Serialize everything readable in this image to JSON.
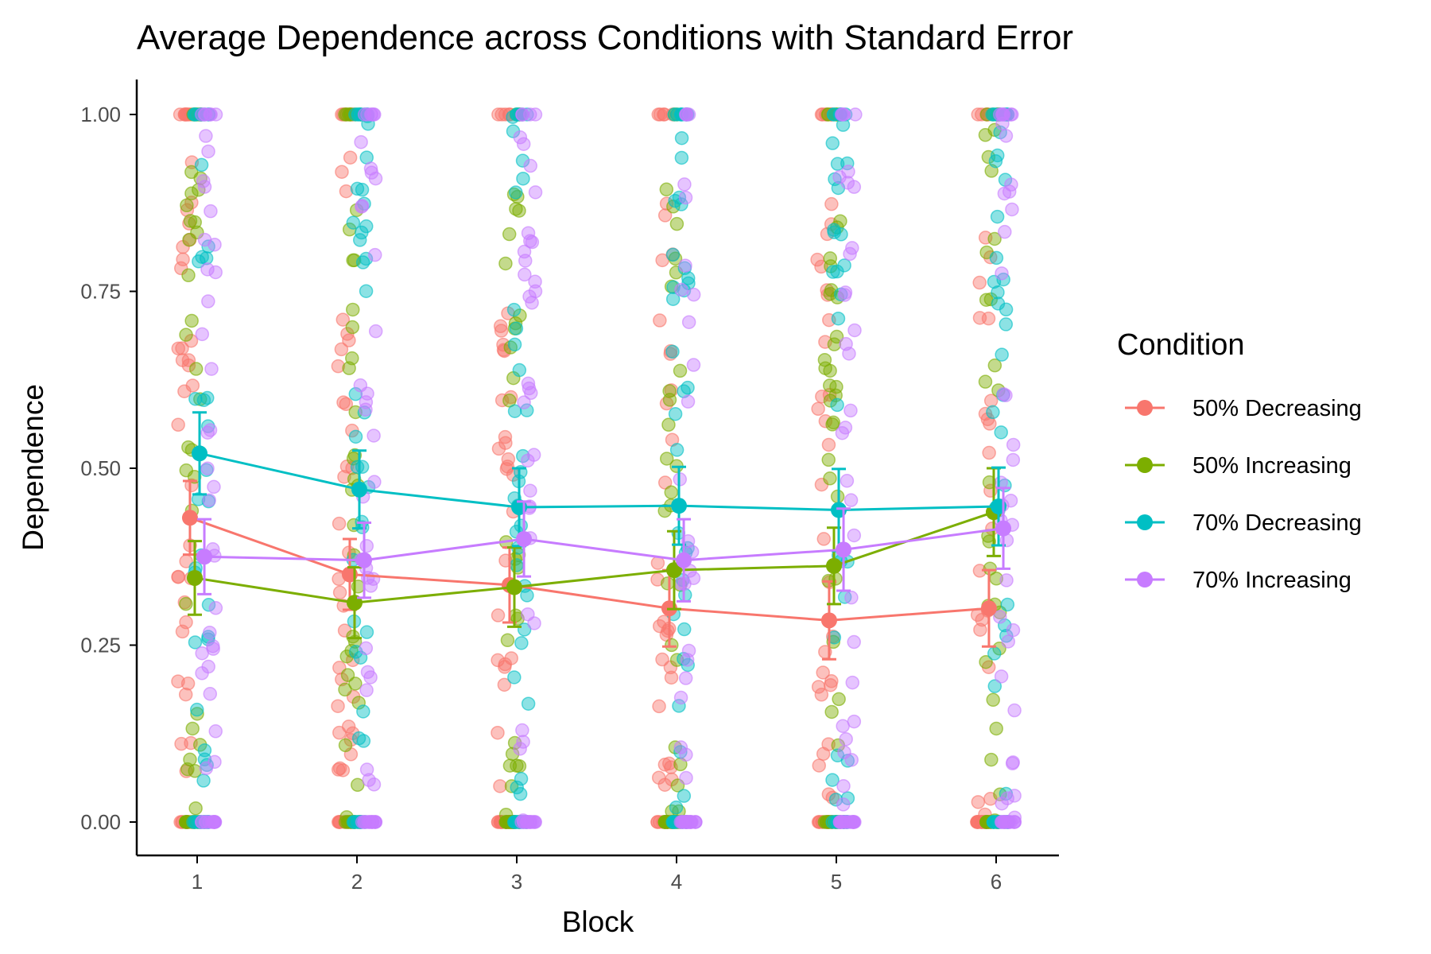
{
  "chart_data": {
    "type": "scatter",
    "title": "Average Dependence across Conditions with Standard Error",
    "xlabel": "Block",
    "ylabel": "Dependence",
    "x": [
      1,
      2,
      3,
      4,
      5,
      6
    ],
    "x_tick_labels": [
      "1",
      "2",
      "3",
      "4",
      "5",
      "6"
    ],
    "y_ticks": [
      0,
      0.25,
      0.5,
      0.75,
      1
    ],
    "y_tick_labels": [
      "0.00",
      "0.25",
      "0.50",
      "0.75",
      "1.00"
    ],
    "ylim": [
      -0.05,
      1.05
    ],
    "xlim": [
      0.6,
      6.4
    ],
    "grid": false,
    "legend": {
      "title": "Condition",
      "placement": "right"
    },
    "series": [
      {
        "name": "50% Decreasing",
        "color": "#F8766D",
        "mean": [
          0.43,
          0.35,
          0.335,
          0.302,
          0.285,
          0.302
        ],
        "se": [
          0.052,
          0.05,
          0.053,
          0.054,
          0.055,
          0.054
        ]
      },
      {
        "name": "50% Increasing",
        "color": "#7CAE00",
        "mean": [
          0.345,
          0.31,
          0.332,
          0.356,
          0.362,
          0.438
        ],
        "se": [
          0.052,
          0.05,
          0.056,
          0.055,
          0.054,
          0.062
        ]
      },
      {
        "name": "70% Decreasing",
        "color": "#00BFC4",
        "mean": [
          0.521,
          0.47,
          0.445,
          0.447,
          0.441,
          0.446
        ],
        "se": [
          0.058,
          0.055,
          0.055,
          0.055,
          0.058,
          0.055
        ]
      },
      {
        "name": "70% Increasing",
        "color": "#C77CFF",
        "mean": [
          0.375,
          0.37,
          0.4,
          0.37,
          0.385,
          0.415
        ],
        "se": [
          0.053,
          0.053,
          0.053,
          0.058,
          0.058,
          0.057
        ]
      }
    ],
    "raw_points_per_condition_per_block": 50
  }
}
